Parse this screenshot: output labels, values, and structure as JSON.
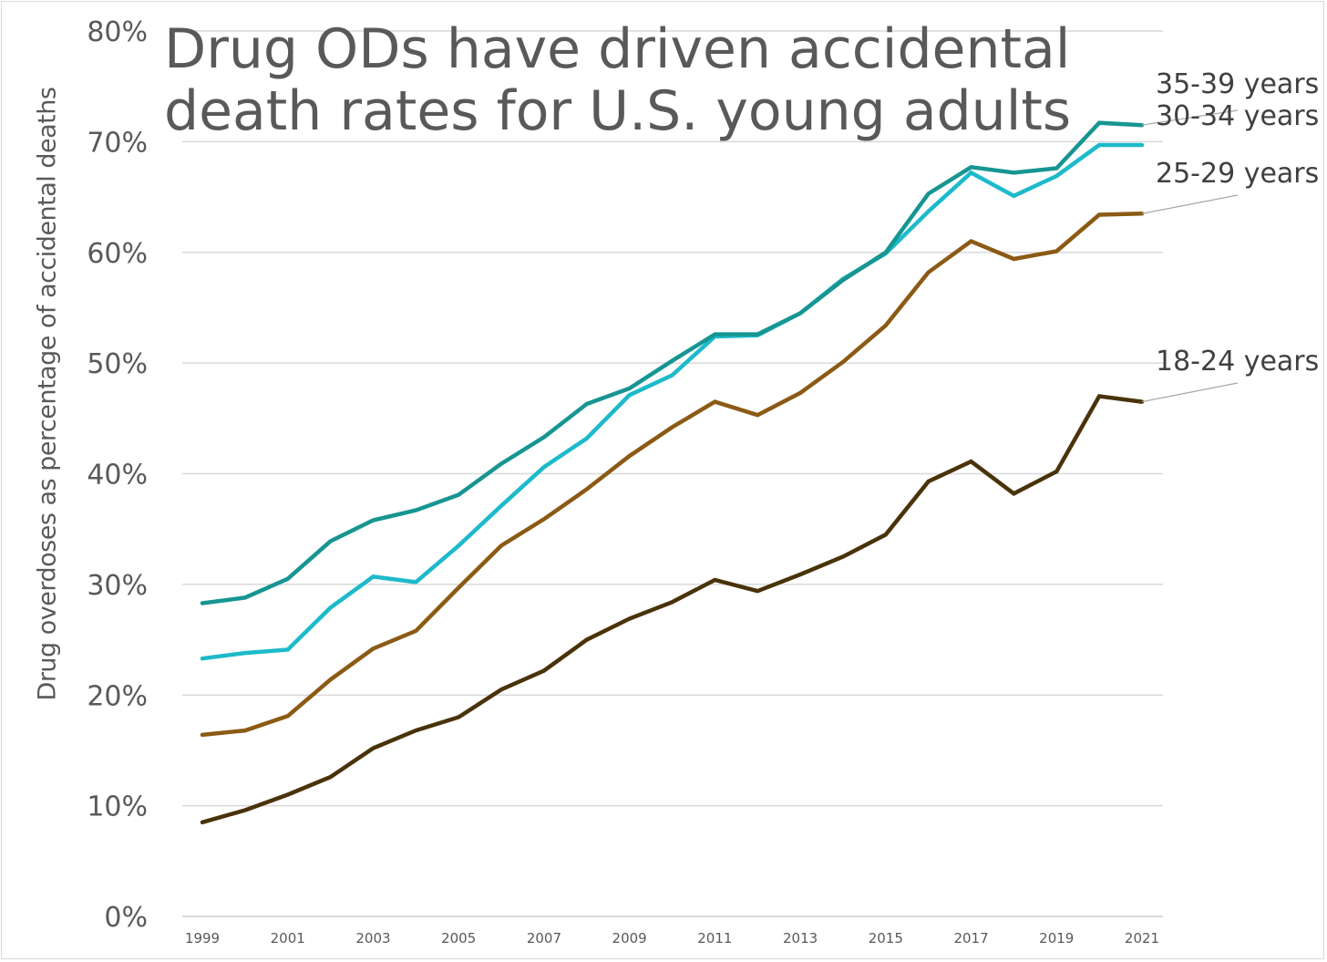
{
  "chart_data": {
    "type": "line",
    "title": "Drug ODs have driven accidental death rates for U.S. young adults",
    "title_lines": [
      "Drug ODs have driven accidental",
      "death rates for U.S. young adults"
    ],
    "xlabel": "",
    "ylabel": "Drug overdoses as percentage of accidental deaths",
    "x": [
      1999,
      2000,
      2001,
      2002,
      2003,
      2004,
      2005,
      2006,
      2007,
      2008,
      2009,
      2010,
      2011,
      2012,
      2013,
      2014,
      2015,
      2016,
      2017,
      2018,
      2019,
      2020,
      2021
    ],
    "x_tick_labels": [
      "1999",
      "2001",
      "2003",
      "2005",
      "2007",
      "2009",
      "2011",
      "2013",
      "2015",
      "2017",
      "2019",
      "2021"
    ],
    "y_tick_values": [
      0,
      10,
      20,
      30,
      40,
      50,
      60,
      70,
      80
    ],
    "y_tick_labels": [
      "0%",
      "10%",
      "20%",
      "30%",
      "40%",
      "50%",
      "60%",
      "70%",
      "80%"
    ],
    "ylim": [
      0,
      80
    ],
    "xlim": [
      1999,
      2021
    ],
    "grid": true,
    "legend": "direct-labels-right",
    "series": [
      {
        "name": "35-39 years",
        "color": "#179592",
        "values": [
          28.3,
          28.8,
          30.5,
          33.9,
          35.8,
          36.7,
          38.1,
          40.9,
          43.3,
          46.3,
          47.7,
          50.2,
          52.6,
          52.6,
          54.5,
          57.5,
          60.0,
          65.3,
          67.7,
          67.2,
          67.6,
          71.7,
          71.5
        ]
      },
      {
        "name": "30-34 years",
        "color": "#1DBACB",
        "values": [
          23.3,
          23.8,
          24.1,
          27.9,
          30.7,
          30.2,
          33.5,
          37.1,
          40.6,
          43.2,
          47.1,
          48.9,
          52.4,
          52.5,
          54.5,
          57.6,
          59.9,
          63.7,
          67.2,
          65.1,
          66.9,
          69.7,
          69.7
        ]
      },
      {
        "name": "25-29 years",
        "color": "#8B5A14",
        "values": [
          16.4,
          16.8,
          18.1,
          21.4,
          24.2,
          25.8,
          29.7,
          33.5,
          35.9,
          38.6,
          41.6,
          44.2,
          46.5,
          45.3,
          47.3,
          50.1,
          53.4,
          58.2,
          61.0,
          59.4,
          60.1,
          63.4,
          63.5
        ]
      },
      {
        "name": "18-24 years",
        "color": "#4A320A",
        "values": [
          8.5,
          9.6,
          11.0,
          12.6,
          15.2,
          16.8,
          18.0,
          20.5,
          22.2,
          25.0,
          26.9,
          28.4,
          30.4,
          29.4,
          30.9,
          32.5,
          34.5,
          39.3,
          41.1,
          38.2,
          40.2,
          47.0,
          46.5
        ]
      }
    ],
    "colors": {
      "text": "#595959",
      "label_text": "#404040",
      "grid": "#d9d9d9",
      "leader": "#a6a6a6"
    }
  }
}
